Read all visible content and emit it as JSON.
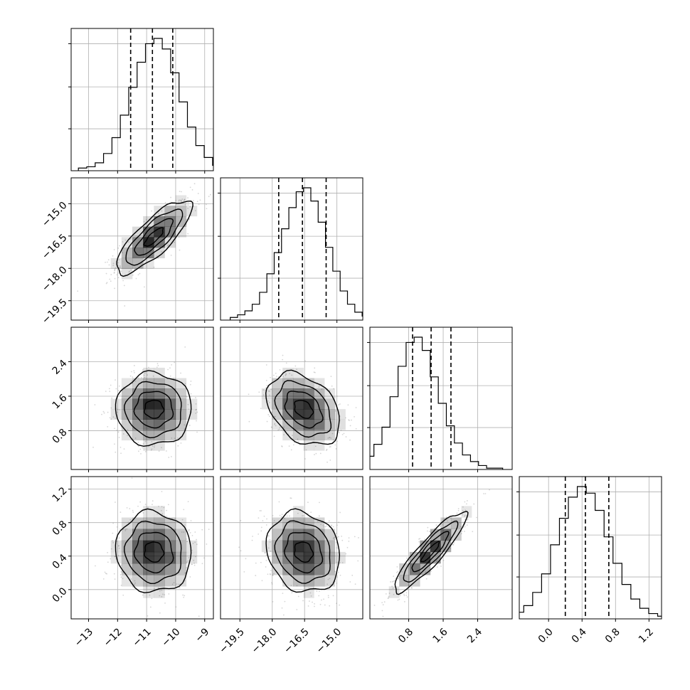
{
  "chart_data": {
    "type": "corner",
    "title": "",
    "grid": true,
    "colors": {
      "line": "#000000",
      "grid": "#b0b0b0",
      "density": "#000000",
      "samples": "#8a8a8a"
    },
    "parameters": [
      {
        "name": "",
        "xlim": [
          -13.6,
          -8.7
        ],
        "ticks": [
          -13,
          -12,
          -11,
          -10,
          -9
        ],
        "quantiles": [
          -11.55,
          -10.8,
          -10.1
        ],
        "mean": -10.75,
        "sigma": 0.65,
        "hist_rel_height": [
          0.02,
          0.03,
          0.06,
          0.13,
          0.25,
          0.42,
          0.63,
          0.82,
          0.96,
          1.0,
          0.92,
          0.74,
          0.52,
          0.33,
          0.19,
          0.1,
          0.04,
          0.02
        ]
      },
      {
        "name": "",
        "xlim": [
          -20.4,
          -13.8
        ],
        "ticks": [
          -19.5,
          -18.0,
          -16.5,
          -15.0
        ],
        "quantiles": [
          -17.7,
          -16.6,
          -15.5
        ],
        "mean": -16.55,
        "sigma": 0.85,
        "hist_rel_height": [
          0.02,
          0.04,
          0.07,
          0.12,
          0.21,
          0.35,
          0.51,
          0.69,
          0.85,
          0.97,
          1.0,
          0.9,
          0.74,
          0.55,
          0.37,
          0.22,
          0.12,
          0.06,
          0.03,
          0.01
        ]
      },
      {
        "name": "",
        "xlim": [
          -0.1,
          3.2
        ],
        "ticks": [
          0.8,
          1.6,
          2.4
        ],
        "quantiles": [
          0.89,
          1.32,
          1.78
        ],
        "mean": 1.3,
        "sigma": 0.42,
        "hist_rel_height": [
          0.04,
          0.1,
          0.19,
          0.32,
          0.55,
          0.78,
          0.96,
          1.0,
          0.9,
          0.7,
          0.5,
          0.33,
          0.2,
          0.11,
          0.06,
          0.03,
          0.01,
          0.01
        ]
      },
      {
        "name": "",
        "xlim": [
          -0.35,
          1.35
        ],
        "ticks": [
          0.0,
          0.4,
          0.8,
          1.2
        ],
        "quantiles": [
          0.2,
          0.44,
          0.72
        ],
        "mean": 0.45,
        "sigma": 0.24,
        "hist_rel_height": [
          0.02,
          0.05,
          0.1,
          0.2,
          0.34,
          0.56,
          0.76,
          0.92,
          1.0,
          0.95,
          0.82,
          0.62,
          0.42,
          0.26,
          0.15,
          0.08,
          0.04,
          0.02
        ]
      }
    ],
    "correlations": {
      "1-0": 0.8,
      "2-0": 0.0,
      "2-1": -0.35,
      "3-0": -0.05,
      "3-1": -0.15,
      "3-2": 0.9
    },
    "contour_levels": [
      0.5,
      1.0,
      1.5,
      2.0
    ]
  }
}
